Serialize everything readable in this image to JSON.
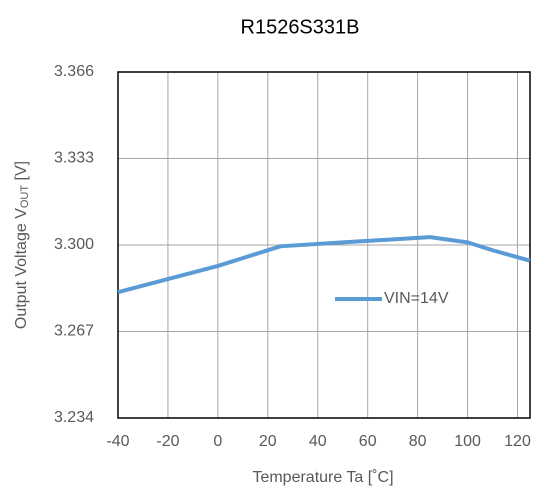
{
  "chart_data": {
    "type": "line",
    "title": "R1526S331B",
    "x_label": "Temperature Ta [˚C]",
    "y_label": [
      "Output Voltage V",
      "OUT",
      " [V]"
    ],
    "x": [
      -40,
      0,
      25,
      50,
      85,
      100,
      110,
      125
    ],
    "series": [
      {
        "name": "VIN=14V",
        "color": "#5b9bd5",
        "values": [
          3.282,
          3.292,
          3.2995,
          3.301,
          3.303,
          3.301,
          3.298,
          3.294
        ]
      }
    ],
    "xlim": [
      -40,
      125
    ],
    "xticks": [
      -40,
      -20,
      0,
      20,
      40,
      60,
      80,
      100,
      120
    ],
    "ylim": [
      3.234,
      3.366
    ],
    "yticks": [
      3.234,
      3.267,
      {
        "value": 3.3,
        "label": "3.300"
      },
      3.333,
      3.366
    ],
    "grid": true,
    "legend": "center-right"
  }
}
